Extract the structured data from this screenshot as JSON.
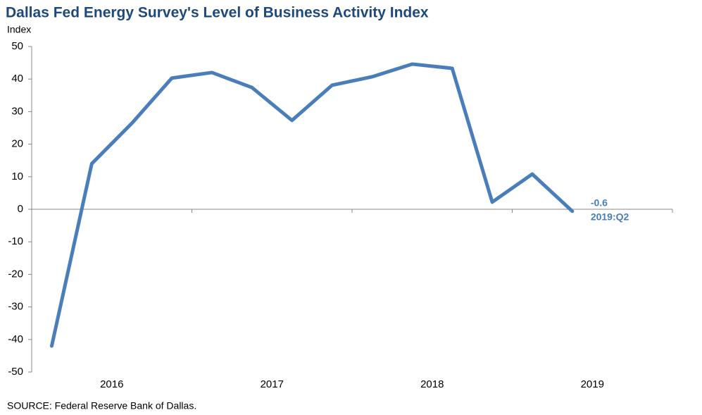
{
  "chart_data": {
    "type": "line",
    "title": "Dallas Fed Energy Survey's Level of Business Activity Index",
    "y_label": "Index",
    "source": "SOURCE:  Federal Reserve  Bank of Dallas.",
    "categories": [
      "2016",
      null,
      null,
      null,
      "2017",
      null,
      null,
      null,
      "2018",
      null,
      null,
      null,
      "2019",
      null
    ],
    "series": [
      {
        "name": "Level of Business Activity Index",
        "color": "#4a7ebb",
        "values": [
          -42,
          14,
          26.4,
          40.3,
          42,
          37.4,
          27.3,
          38.1,
          40.7,
          44.6,
          43.3,
          2.2,
          10.8,
          -0.6
        ],
        "value_labels": [
          null,
          null,
          null,
          null,
          null,
          null,
          null,
          null,
          null,
          null,
          null,
          null,
          null,
          "-0.6"
        ]
      }
    ],
    "annotation": "2019:Q2",
    "ylim": [
      -50,
      50
    ],
    "yticks": [
      -50,
      -40,
      -30,
      -20,
      -10,
      0,
      10,
      20,
      30,
      40,
      50
    ],
    "grid": false
  }
}
